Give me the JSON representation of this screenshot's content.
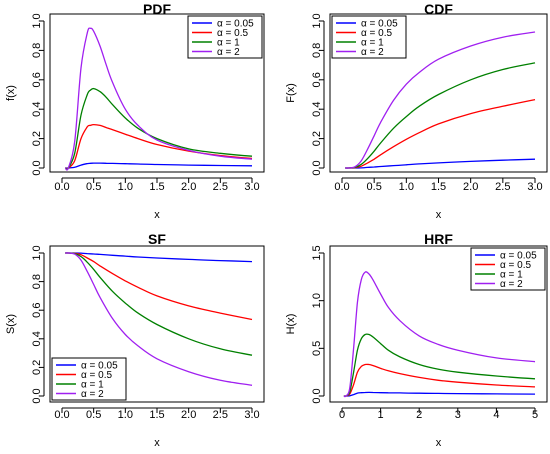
{
  "chart_data": [
    {
      "type": "line",
      "title": "PDF",
      "xlabel": "x",
      "ylabel": "f(x)",
      "xlim": [
        0,
        3
      ],
      "ylim": [
        0,
        1
      ],
      "xticks": [
        "0.0",
        "0.5",
        "1.0",
        "1.5",
        "2.0",
        "2.5",
        "3.0"
      ],
      "yticks": [
        "0.0",
        "0.2",
        "0.4",
        "0.6",
        "0.8",
        "1.0"
      ],
      "legend_position": "top-right",
      "x": [
        0.05,
        0.1,
        0.2,
        0.3,
        0.4,
        0.45,
        0.5,
        0.6,
        0.7,
        0.8,
        1.0,
        1.2,
        1.5,
        2.0,
        2.5,
        3.0
      ],
      "series": [
        {
          "name": "α = 0.05",
          "color": "#0000ff",
          "values": [
            0,
            0,
            0.005,
            0.02,
            0.03,
            0.032,
            0.033,
            0.033,
            0.032,
            0.031,
            0.029,
            0.027,
            0.024,
            0.02,
            0.017,
            0.015
          ]
        },
        {
          "name": "α = 0.5",
          "color": "#ff0000",
          "values": [
            0,
            0,
            0.05,
            0.2,
            0.28,
            0.29,
            0.295,
            0.29,
            0.275,
            0.26,
            0.23,
            0.2,
            0.16,
            0.115,
            0.085,
            0.065
          ]
        },
        {
          "name": "α = 1",
          "color": "#008000",
          "values": [
            0,
            0,
            0.1,
            0.36,
            0.5,
            0.53,
            0.54,
            0.52,
            0.48,
            0.43,
            0.34,
            0.27,
            0.2,
            0.13,
            0.1,
            0.08
          ]
        },
        {
          "name": "α = 2",
          "color": "#a020f0",
          "values": [
            0,
            0,
            0.18,
            0.68,
            0.92,
            0.95,
            0.93,
            0.83,
            0.7,
            0.58,
            0.4,
            0.29,
            0.19,
            0.12,
            0.08,
            0.06
          ]
        }
      ]
    },
    {
      "type": "line",
      "title": "CDF",
      "xlabel": "x",
      "ylabel": "F(x)",
      "xlim": [
        0,
        3
      ],
      "ylim": [
        0,
        1
      ],
      "xticks": [
        "0.0",
        "0.5",
        "1.0",
        "1.5",
        "2.0",
        "2.5",
        "3.0"
      ],
      "yticks": [
        "0.0",
        "0.2",
        "0.4",
        "0.6",
        "0.8",
        "1.0"
      ],
      "legend_position": "top-left",
      "x": [
        0.05,
        0.1,
        0.2,
        0.3,
        0.4,
        0.5,
        0.6,
        0.8,
        1.0,
        1.2,
        1.5,
        2.0,
        2.5,
        3.0
      ],
      "series": [
        {
          "name": "α = 0.05",
          "color": "#0000ff",
          "values": [
            0,
            0,
            0,
            0.001,
            0.004,
            0.007,
            0.01,
            0.016,
            0.022,
            0.028,
            0.035,
            0.045,
            0.053,
            0.06
          ]
        },
        {
          "name": "α = 0.5",
          "color": "#ff0000",
          "values": [
            0,
            0,
            0.002,
            0.012,
            0.035,
            0.06,
            0.09,
            0.145,
            0.195,
            0.24,
            0.3,
            0.37,
            0.42,
            0.465
          ]
        },
        {
          "name": "α = 1",
          "color": "#008000",
          "values": [
            0,
            0,
            0.004,
            0.025,
            0.065,
            0.115,
            0.17,
            0.27,
            0.35,
            0.42,
            0.5,
            0.6,
            0.67,
            0.715
          ]
        },
        {
          "name": "α = 2",
          "color": "#a020f0",
          "values": [
            0,
            0,
            0.008,
            0.05,
            0.13,
            0.22,
            0.31,
            0.46,
            0.57,
            0.65,
            0.74,
            0.83,
            0.89,
            0.925
          ]
        }
      ]
    },
    {
      "type": "line",
      "title": "SF",
      "xlabel": "x",
      "ylabel": "S(x)",
      "xlim": [
        0,
        3
      ],
      "ylim": [
        0,
        1
      ],
      "xticks": [
        "0.0",
        "0.5",
        "1.0",
        "1.5",
        "2.0",
        "2.5",
        "3.0"
      ],
      "yticks": [
        "0.0",
        "0.2",
        "0.4",
        "0.6",
        "0.8",
        "1.0"
      ],
      "legend_position": "bottom-left",
      "x": [
        0.05,
        0.1,
        0.2,
        0.3,
        0.4,
        0.5,
        0.6,
        0.8,
        1.0,
        1.2,
        1.5,
        2.0,
        2.5,
        3.0
      ],
      "series": [
        {
          "name": "α = 0.05",
          "color": "#0000ff",
          "values": [
            1,
            1,
            1,
            0.999,
            0.996,
            0.993,
            0.99,
            0.984,
            0.978,
            0.972,
            0.965,
            0.955,
            0.947,
            0.94
          ]
        },
        {
          "name": "α = 0.5",
          "color": "#ff0000",
          "values": [
            1,
            1,
            0.998,
            0.988,
            0.965,
            0.94,
            0.91,
            0.855,
            0.805,
            0.76,
            0.7,
            0.63,
            0.58,
            0.535
          ]
        },
        {
          "name": "α = 1",
          "color": "#008000",
          "values": [
            1,
            1,
            0.996,
            0.975,
            0.935,
            0.885,
            0.83,
            0.73,
            0.65,
            0.58,
            0.5,
            0.4,
            0.33,
            0.285
          ]
        },
        {
          "name": "α = 2",
          "color": "#a020f0",
          "values": [
            1,
            1,
            0.992,
            0.95,
            0.87,
            0.78,
            0.69,
            0.54,
            0.43,
            0.35,
            0.26,
            0.17,
            0.11,
            0.075
          ]
        }
      ]
    },
    {
      "type": "line",
      "title": "HRF",
      "xlabel": "x",
      "ylabel": "H(x)",
      "xlim": [
        0,
        5
      ],
      "ylim": [
        0,
        1.5
      ],
      "xticks": [
        "0",
        "1",
        "2",
        "3",
        "4",
        "5"
      ],
      "yticks": [
        "0.0",
        "0.5",
        "1.0",
        "1.5"
      ],
      "legend_position": "top-right",
      "x": [
        0.05,
        0.1,
        0.2,
        0.3,
        0.4,
        0.5,
        0.6,
        0.7,
        0.8,
        1.0,
        1.2,
        1.5,
        2.0,
        2.5,
        3.0,
        4.0,
        5.0
      ],
      "series": [
        {
          "name": "α = 0.05",
          "color": "#0000ff",
          "values": [
            0,
            0,
            0.002,
            0.015,
            0.03,
            0.035,
            0.037,
            0.038,
            0.037,
            0.035,
            0.034,
            0.032,
            0.029,
            0.027,
            0.025,
            0.022,
            0.02
          ]
        },
        {
          "name": "α = 0.5",
          "color": "#ff0000",
          "values": [
            0,
            0,
            0.02,
            0.12,
            0.25,
            0.31,
            0.33,
            0.33,
            0.32,
            0.29,
            0.265,
            0.235,
            0.195,
            0.165,
            0.145,
            0.115,
            0.095
          ]
        },
        {
          "name": "α = 1",
          "color": "#008000",
          "values": [
            0,
            0,
            0.04,
            0.25,
            0.48,
            0.6,
            0.645,
            0.645,
            0.62,
            0.55,
            0.48,
            0.41,
            0.33,
            0.28,
            0.25,
            0.21,
            0.18
          ]
        },
        {
          "name": "α = 2",
          "color": "#a020f0",
          "values": [
            0,
            0,
            0.08,
            0.5,
            0.98,
            1.22,
            1.3,
            1.28,
            1.22,
            1.07,
            0.93,
            0.79,
            0.63,
            0.54,
            0.48,
            0.4,
            0.36
          ]
        }
      ]
    }
  ]
}
